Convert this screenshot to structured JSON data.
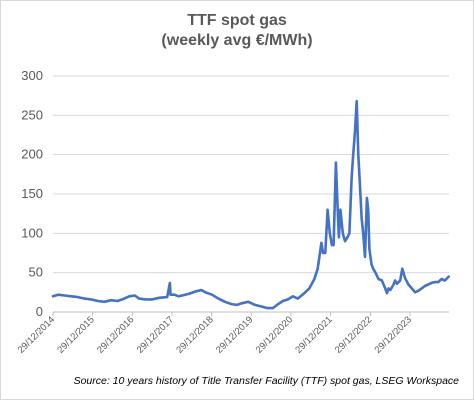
{
  "title_line1": "TTF spot gas",
  "title_line2": "(weekly avg €/MWh)",
  "source": "Source: 10 years history of Title Transfer Facility (TTF) spot gas, LSEG Workspace",
  "chart_data": {
    "type": "line",
    "title": "TTF spot gas (weekly avg €/MWh)",
    "xlabel": "",
    "ylabel": "",
    "ylim": [
      0,
      300
    ],
    "yticks": [
      0,
      50,
      100,
      150,
      200,
      250,
      300
    ],
    "xlim": [
      "2014-12-29",
      "2024-12-23"
    ],
    "xticks": [
      "29/12/2014",
      "29/12/2015",
      "29/12/2016",
      "29/12/2017",
      "29/12/2018",
      "29/12/2019",
      "29/12/2020",
      "29/12/2021",
      "29/12/2022",
      "29/12/2023"
    ],
    "grid": "horizontal",
    "legend": "none",
    "color": "#4472c4",
    "series": [
      {
        "x": [
          "2014-12-29",
          "2015-02-15",
          "2015-04-15",
          "2015-06-15",
          "2015-08-15",
          "2015-10-15",
          "2015-12-15",
          "2016-02-15",
          "2016-04-15",
          "2016-06-15",
          "2016-08-15",
          "2016-10-15",
          "2016-12-01",
          "2017-01-20",
          "2017-03-01",
          "2017-05-01",
          "2017-07-01",
          "2017-09-01",
          "2017-11-15",
          "2017-12-10",
          "2017-12-15",
          "2018-01-20",
          "2018-03-01",
          "2018-04-01",
          "2018-06-01",
          "2018-08-01",
          "2018-09-25",
          "2018-11-01",
          "2019-01-01",
          "2019-03-01",
          "2019-05-01",
          "2019-07-01",
          "2019-08-20",
          "2019-10-01",
          "2019-12-01",
          "2020-02-01",
          "2020-04-01",
          "2020-05-25",
          "2020-07-15",
          "2020-09-01",
          "2020-10-15",
          "2020-12-01",
          "2021-01-15",
          "2021-03-01",
          "2021-05-01",
          "2021-06-15",
          "2021-08-01",
          "2021-09-01",
          "2021-10-05",
          "2021-10-20",
          "2021-11-10",
          "2021-12-01",
          "2021-12-21",
          "2022-01-10",
          "2022-01-25",
          "2022-02-15",
          "2022-03-07",
          "2022-03-15",
          "2022-03-29",
          "2022-04-20",
          "2022-05-10",
          "2022-06-01",
          "2022-06-20",
          "2022-07-10",
          "2022-07-25",
          "2022-08-10",
          "2022-08-26",
          "2022-09-10",
          "2022-09-25",
          "2022-10-10",
          "2022-10-25",
          "2022-11-10",
          "2022-11-28",
          "2022-12-10",
          "2022-12-21",
          "2023-01-10",
          "2023-01-25",
          "2023-02-15",
          "2023-03-15",
          "2023-04-15",
          "2023-05-15",
          "2023-06-01",
          "2023-06-15",
          "2023-07-01",
          "2023-08-01",
          "2023-08-15",
          "2023-09-01",
          "2023-10-01",
          "2023-10-20",
          "2023-11-15",
          "2023-12-15",
          "2024-01-15",
          "2024-02-15",
          "2024-03-15",
          "2024-04-15",
          "2024-05-15",
          "2024-06-15",
          "2024-07-15",
          "2024-08-15",
          "2024-09-15",
          "2024-10-15",
          "2024-11-15",
          "2024-12-20"
        ],
        "y": [
          20,
          22,
          21,
          20,
          19,
          17,
          16,
          14,
          13,
          15,
          14,
          17,
          20,
          21,
          17,
          16,
          16,
          18,
          19,
          37,
          22,
          22,
          20,
          21,
          23,
          26,
          28,
          25,
          22,
          17,
          13,
          10,
          9,
          11,
          13,
          9,
          7,
          5,
          5,
          10,
          14,
          16,
          20,
          17,
          24,
          30,
          42,
          55,
          88,
          75,
          75,
          130,
          100,
          85,
          85,
          190,
          120,
          95,
          130,
          100,
          90,
          95,
          100,
          170,
          200,
          230,
          268,
          200,
          160,
          120,
          100,
          70,
          145,
          130,
          80,
          60,
          55,
          50,
          42,
          40,
          30,
          24,
          30,
          28,
          35,
          40,
          36,
          40,
          55,
          43,
          35,
          30,
          25,
          27,
          30,
          33,
          35,
          37,
          38,
          38,
          42,
          40,
          45
        ]
      }
    ]
  }
}
